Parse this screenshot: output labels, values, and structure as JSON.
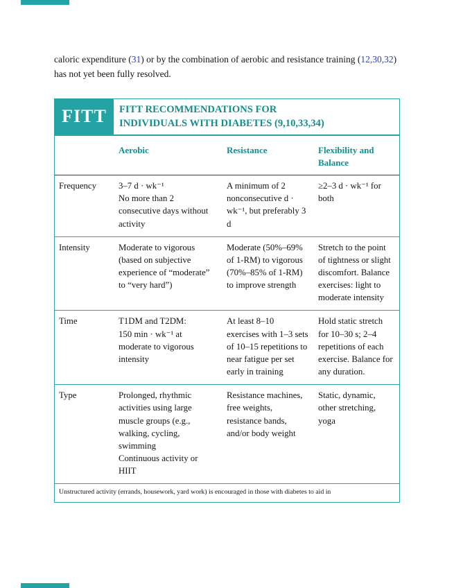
{
  "intro": {
    "part1": "caloric expenditure (",
    "ref1": "31",
    "part2": ") or by the combination of aerobic and resistance training (",
    "ref2": "12,30,32",
    "part3": ") has not yet been fully resolved."
  },
  "table": {
    "badge": "FITT",
    "title": "FITT RECOMMENDATIONS FOR\nINDIVIDUALS WITH DIABETES (9,10,33,34)",
    "columns": [
      "Aerobic",
      "Resistance",
      "Flexibility and Balance"
    ],
    "rows": [
      {
        "label": "Frequency",
        "cells": [
          "3–7 d · wk⁻¹\nNo more than 2 consecutive days without activity",
          "A minimum of 2 nonconsecutive d · wk⁻¹, but preferably 3 d",
          "≥2–3 d · wk⁻¹ for both"
        ]
      },
      {
        "label": "Intensity",
        "cells": [
          "Moderate to vigorous (based on subjective experience of “moderate” to “very hard”)",
          "Moderate (50%–69% of 1-RM) to vigorous (70%–85% of 1-RM) to improve strength",
          "Stretch to the point of tightness or slight discomfort. Balance exercises: light to moderate intensity"
        ]
      },
      {
        "label": "Time",
        "cells": [
          "T1DM and T2DM:\n150 min · wk⁻¹ at moderate to vigorous intensity",
          "At least 8–10 exercises with 1–3 sets of 10–15 repetitions to near fatigue per set early in training",
          "Hold static stretch for 10–30 s; 2–4 repetitions of each exercise. Balance for any duration."
        ]
      },
      {
        "label": "Type",
        "cells": [
          "Prolonged, rhythmic activities using large muscle groups (e.g., walking, cycling, swimming\nContinuous activity or HIIT",
          "Resistance machines, free weights, resistance bands, and/or body weight",
          "Static, dynamic, other stretching, yoga"
        ]
      }
    ],
    "footnote": "Unstructured activity (errands, housework, yard work) is encouraged in those with diabetes to aid in"
  },
  "colors": {
    "teal_accent": "#23a3a3",
    "teal_text": "#128f8f",
    "link_blue": "#2440c8",
    "body_text": "#151515"
  }
}
